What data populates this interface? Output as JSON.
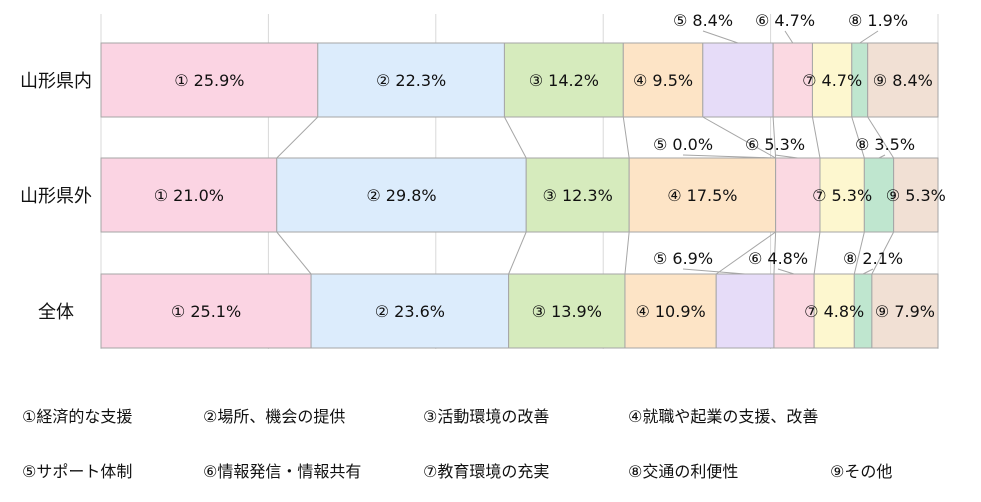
{
  "chart_data": {
    "type": "bar",
    "stacked": true,
    "orientation": "horizontal",
    "xlim": [
      0,
      100
    ],
    "grid": true,
    "categories": [
      "山形県内",
      "山形県外",
      "全体"
    ],
    "series": [
      {
        "name": "①経済的な支援",
        "marker": "①",
        "color": "#fbd4e3",
        "values": [
          25.9,
          21.0,
          25.1
        ]
      },
      {
        "name": "②場所、機会の提供",
        "marker": "②",
        "color": "#dcecfc",
        "values": [
          22.3,
          29.8,
          23.6
        ]
      },
      {
        "name": "③活動環境の改善",
        "marker": "③",
        "color": "#d6ebbd",
        "values": [
          14.2,
          12.3,
          13.9
        ]
      },
      {
        "name": "④就職や起業の支援、改善",
        "marker": "④",
        "color": "#fde4c6",
        "values": [
          9.5,
          17.5,
          10.9
        ]
      },
      {
        "name": "⑤サポート体制",
        "marker": "⑤",
        "color": "#e6dcf8",
        "values": [
          8.4,
          0.0,
          6.9
        ]
      },
      {
        "name": "⑥情報発信・情報共有",
        "marker": "⑥",
        "color": "#fbd9e2",
        "values": [
          4.7,
          5.3,
          4.8
        ]
      },
      {
        "name": "⑦教育環境の充実",
        "marker": "⑦",
        "color": "#fdf7cf",
        "values": [
          4.7,
          5.3,
          4.8
        ]
      },
      {
        "name": "⑧交通の利便性",
        "marker": "⑧",
        "color": "#bfe6cf",
        "values": [
          1.9,
          3.5,
          2.1
        ]
      },
      {
        "name": "⑨その他",
        "marker": "⑨",
        "color": "#f1e0d4",
        "values": [
          8.4,
          5.3,
          7.9
        ]
      }
    ],
    "labels": [
      [
        "① 25.9%",
        "② 22.3%",
        "③ 14.2%",
        "④ 9.5%",
        "⑤ 8.4%",
        "⑥ 4.7%",
        "⑦ 4.7%",
        "⑧ 1.9%",
        "⑨ 8.4%"
      ],
      [
        "① 21.0%",
        "② 29.8%",
        "③ 12.3%",
        "④ 17.5%",
        "⑤ 0.0%",
        "⑥ 5.3%",
        "⑦ 5.3%",
        "⑧ 3.5%",
        "⑨ 5.3%"
      ],
      [
        "① 25.1%",
        "② 23.6%",
        "③ 13.9%",
        "④ 10.9%",
        "⑤ 6.9%",
        "⑥ 4.8%",
        "⑦ 4.8%",
        "⑧ 2.1%",
        "⑨ 7.9%"
      ]
    ],
    "legend": [
      "①経済的な支援",
      "②場所、機会の提供",
      "③活動環境の改善",
      "④就職や起業の支援、改善",
      "⑤サポート体制",
      "⑥情報発信・情報共有",
      "⑦教育環境の充実",
      "⑧交通の利便性",
      "⑨その他"
    ],
    "legend_position": "bottom"
  }
}
